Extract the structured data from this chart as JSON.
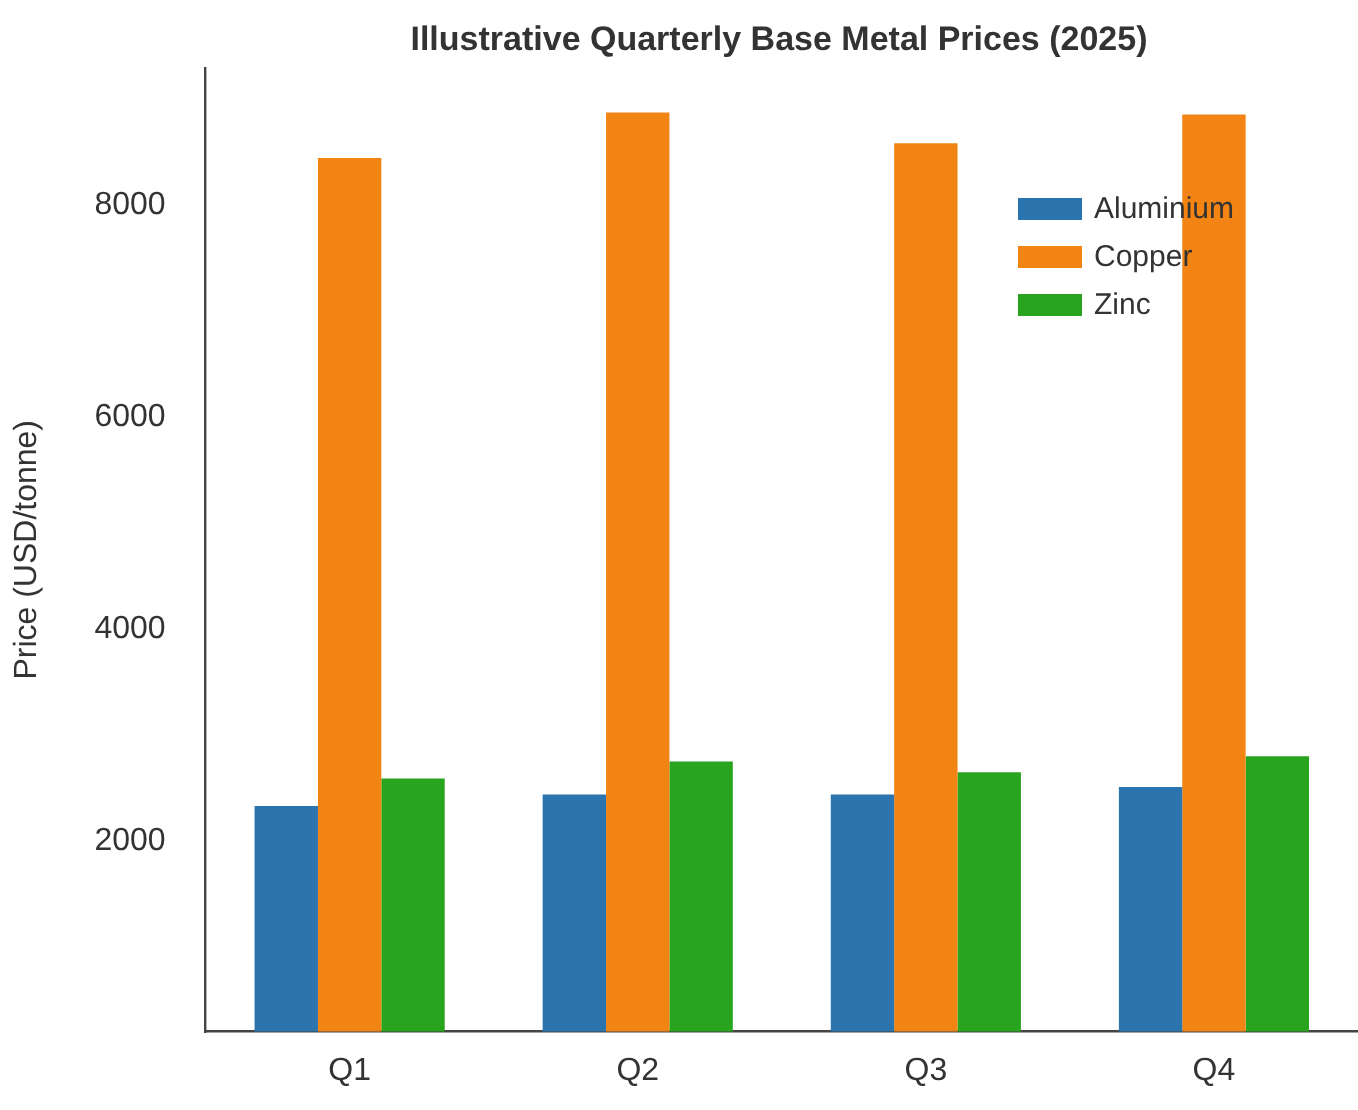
{
  "chart_data": {
    "type": "bar",
    "title": "Illustrative Quarterly Base Metal Prices (2025)",
    "ylabel": "Price (USD/tonne)",
    "categories": [
      "Q1",
      "Q2",
      "Q3",
      "Q4"
    ],
    "series": [
      {
        "name": "Aluminium",
        "color": "#2b74ad",
        "values": [
          2330,
          2440,
          2440,
          2510
        ]
      },
      {
        "name": "Copper",
        "color": "#f28414",
        "values": [
          8450,
          8880,
          8590,
          8860
        ]
      },
      {
        "name": "Zinc",
        "color": "#28a41e",
        "values": [
          2590,
          2750,
          2650,
          2800
        ]
      }
    ],
    "ylim": [
      200,
      9300
    ],
    "yticks": [
      2000,
      4000,
      6000,
      8000
    ],
    "grid": false,
    "legend": "top right"
  }
}
